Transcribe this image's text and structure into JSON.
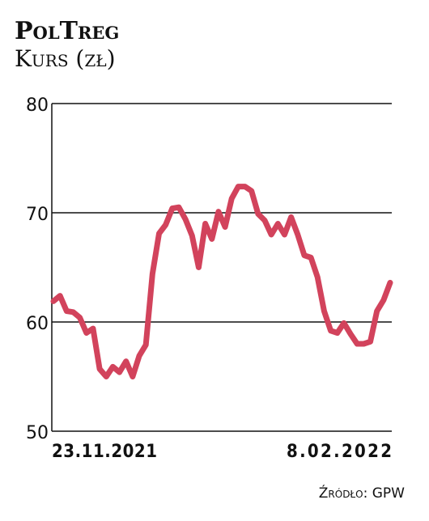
{
  "chart_data": {
    "type": "line",
    "title": "PolTreg",
    "subtitle": "Kurs (zł)",
    "source": "Źródło: GPW",
    "categories": [
      "23.11.2021",
      null,
      null,
      null,
      null,
      null,
      null,
      null,
      null,
      null,
      null,
      null,
      null,
      null,
      null,
      null,
      null,
      null,
      null,
      null,
      null,
      null,
      null,
      null,
      null,
      null,
      null,
      null,
      null,
      null,
      null,
      null,
      null,
      null,
      null,
      null,
      null,
      null,
      null,
      null,
      null,
      null,
      null,
      null,
      null,
      null,
      null,
      null,
      null,
      null,
      null,
      "8.02.2022"
    ],
    "series": [
      {
        "name": "PolTreg",
        "color": "#d2435c",
        "values": [
          61.9,
          62.4,
          61.0,
          60.9,
          60.4,
          59.0,
          59.4,
          55.7,
          55.0,
          55.9,
          55.4,
          56.4,
          55.0,
          56.9,
          57.9,
          64.4,
          68.1,
          68.9,
          70.4,
          70.5,
          69.4,
          67.9,
          65.0,
          69.0,
          67.6,
          70.1,
          68.7,
          71.3,
          72.4,
          72.4,
          72.0,
          69.9,
          69.3,
          68.0,
          69.0,
          68.0,
          69.6,
          68.0,
          66.1,
          65.9,
          64.1,
          61.0,
          59.2,
          59.0,
          59.9,
          58.9,
          58.0,
          58.0,
          58.2,
          61.0,
          62.0,
          63.6
        ]
      }
    ],
    "ylim": [
      50,
      80
    ],
    "yticks": [
      50,
      60,
      70,
      80
    ],
    "grid": true
  }
}
